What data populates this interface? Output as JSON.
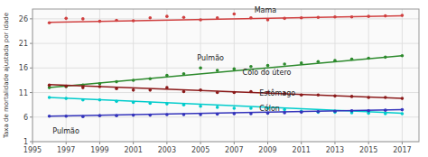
{
  "chart_data": {
    "type": "scatter",
    "ylabel": "Taxa de mortalidade ajustada por idade",
    "x": [
      1996,
      1997,
      1998,
      1999,
      2000,
      2001,
      2002,
      2003,
      2004,
      2005,
      2006,
      2007,
      2008,
      2009,
      2010,
      2011,
      2012,
      2013,
      2014,
      2015,
      2016,
      2017
    ],
    "xlim": [
      1995,
      2018
    ],
    "ylim": [
      1,
      28
    ],
    "xticks": [
      1995,
      1997,
      1999,
      2001,
      2003,
      2005,
      2007,
      2009,
      2011,
      2013,
      2015,
      2017
    ],
    "yticks": [
      1,
      6,
      11,
      16,
      21,
      26
    ],
    "grid": true,
    "series": [
      {
        "color": "#d04040",
        "values": [
          25.2,
          26.1,
          26.0,
          25.5,
          25.7,
          25.6,
          26.2,
          26.5,
          26.3,
          25.8,
          26.2,
          27.0,
          26.2,
          25.8,
          26.1,
          26.2,
          26.3,
          26.4,
          26.4,
          26.5,
          26.6,
          26.7
        ],
        "trend_x": [
          1996,
          2017
        ],
        "trend_values": [
          25.3,
          26.6
        ]
      },
      {
        "color": "#2d8a2d",
        "values": [
          12.0,
          12.2,
          12.5,
          12.8,
          13.2,
          13.5,
          13.8,
          14.5,
          14.8,
          16.0,
          15.5,
          15.8,
          16.3,
          16.5,
          16.8,
          17.0,
          17.3,
          17.5,
          17.8,
          18.0,
          18.2,
          18.5
        ],
        "trend_x": [
          1996,
          2017
        ],
        "trend_values": [
          12.0,
          18.5
        ]
      },
      {
        "color": "#8b1a1a",
        "values": [
          12.5,
          12.3,
          12.0,
          12.2,
          11.8,
          11.5,
          11.5,
          12.0,
          11.2,
          11.5,
          11.0,
          11.0,
          11.2,
          11.0,
          10.8,
          10.5,
          10.5,
          10.3,
          10.2,
          10.0,
          10.0,
          9.8
        ],
        "trend_x": [
          1996,
          2017
        ],
        "trend_values": [
          12.6,
          9.8
        ]
      },
      {
        "color": "#00cccc",
        "values": [
          10.0,
          9.8,
          9.5,
          9.5,
          9.2,
          9.0,
          8.8,
          8.7,
          8.5,
          8.2,
          8.0,
          7.8,
          7.8,
          7.8,
          7.5,
          7.2,
          7.0,
          7.0,
          6.9,
          6.8,
          6.7,
          6.7
        ],
        "trend_x": [
          1996,
          2017
        ],
        "trend_values": [
          10.0,
          6.8
        ]
      },
      {
        "color": "#3333bb",
        "values": [
          6.2,
          6.2,
          6.1,
          6.3,
          6.3,
          6.4,
          6.4,
          6.5,
          6.5,
          6.5,
          6.6,
          6.7,
          6.7,
          6.8,
          6.9,
          7.0,
          7.1,
          7.2,
          7.3,
          7.3,
          7.4,
          7.5
        ],
        "trend_x": [
          1996,
          2017
        ],
        "trend_values": [
          6.2,
          7.5
        ]
      }
    ],
    "annotations": [
      {
        "text": "Mama",
        "x": 2008.2,
        "y": 27.0
      },
      {
        "text": "Pulmão",
        "x": 2004.8,
        "y": 17.3
      },
      {
        "text": "Colo do útero",
        "x": 2007.5,
        "y": 14.5
      },
      {
        "text": "Estômago",
        "x": 2008.5,
        "y": 10.2
      },
      {
        "text": "Cólon",
        "x": 2008.5,
        "y": 7.0
      },
      {
        "text": "Pulmão",
        "x": 1996.2,
        "y": 2.5
      }
    ]
  }
}
